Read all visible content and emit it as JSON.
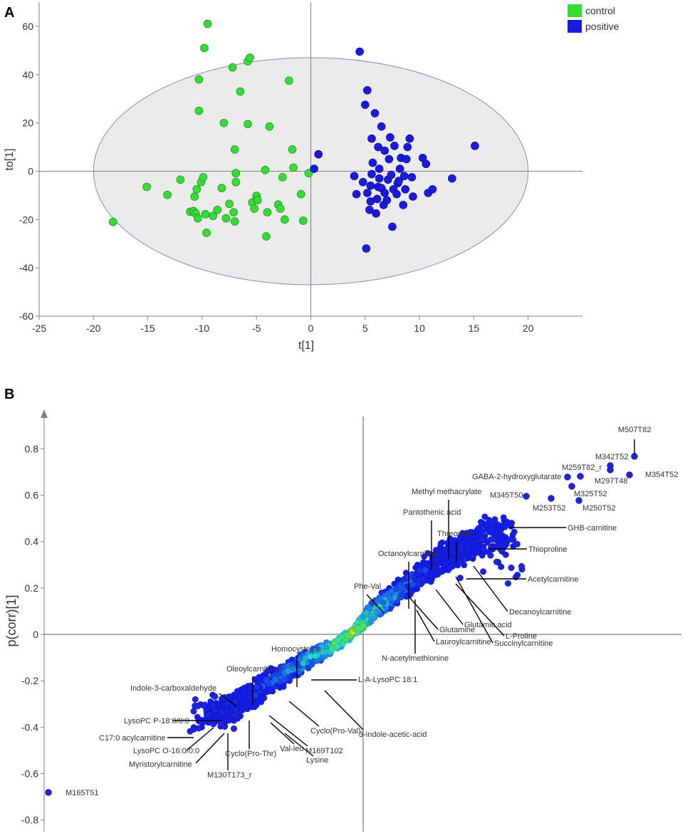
{
  "colors": {
    "control": "#33dd33",
    "positive": "#1a1ae0",
    "ellipse_fill": "#ebebeb",
    "axis": "#808080",
    "leader": "#000000"
  },
  "chart_data": [
    {
      "type": "scatter",
      "panel": "A",
      "xlabel": "t[1]",
      "ylabel": "to[1]",
      "xlim": [
        -25,
        25
      ],
      "ylim": [
        -60,
        70
      ],
      "xticks": [
        -25,
        -20,
        -15,
        -10,
        -5,
        0,
        5,
        10,
        15,
        20
      ],
      "yticks": [
        -60,
        -40,
        -20,
        0,
        20,
        40,
        60
      ],
      "legend": [
        "control",
        "positive"
      ],
      "legend_position": "top-right",
      "confidence_ellipse": {
        "cx": 0,
        "cy": 0,
        "rx": 20,
        "ry": 47
      },
      "series": [
        {
          "name": "control",
          "points": [
            [
              -18.2,
              -21
            ],
            [
              -15.1,
              -6.5
            ],
            [
              -13.2,
              -9.8
            ],
            [
              -12,
              -3.5
            ],
            [
              -11.1,
              -16.8
            ],
            [
              -10.8,
              -16.5
            ],
            [
              -10.7,
              -10.5
            ],
            [
              -10.6,
              -17.5
            ],
            [
              -10.5,
              -7.5
            ],
            [
              -10.4,
              -19.5
            ],
            [
              -10.3,
              25
            ],
            [
              -10.3,
              38
            ],
            [
              -10.1,
              -4.5
            ],
            [
              -9.9,
              -2.5
            ],
            [
              -9.8,
              51
            ],
            [
              -9.7,
              -17.8
            ],
            [
              -9.6,
              -25.5
            ],
            [
              -9.5,
              61
            ],
            [
              -9,
              -18.5
            ],
            [
              -8.6,
              -16
            ],
            [
              -8.2,
              -7
            ],
            [
              -8,
              20
            ],
            [
              -7.8,
              -19.5
            ],
            [
              -7.5,
              -13.5
            ],
            [
              -7.2,
              43
            ],
            [
              -7.1,
              -17
            ],
            [
              -7,
              -20.8
            ],
            [
              -7,
              9
            ],
            [
              -6.9,
              -4.5
            ],
            [
              -6.9,
              -0.8
            ],
            [
              -6.5,
              33
            ],
            [
              -5.8,
              45.5
            ],
            [
              -5.8,
              19.5
            ],
            [
              -5.6,
              47
            ],
            [
              -5.4,
              -13
            ],
            [
              -5.2,
              -15.5
            ],
            [
              -5,
              -10.2
            ],
            [
              -4.9,
              -12
            ],
            [
              -4.2,
              0.5
            ],
            [
              -4.1,
              -27
            ],
            [
              -4,
              -17
            ],
            [
              -3.8,
              18.5
            ],
            [
              -3,
              -13.8
            ],
            [
              -2.8,
              -15.5
            ],
            [
              -2.6,
              -2.5
            ],
            [
              -2.4,
              -20
            ],
            [
              -2,
              37.5
            ],
            [
              -1.7,
              9
            ],
            [
              -1.6,
              1.5
            ],
            [
              -0.9,
              -9.5
            ],
            [
              -0.7,
              -20.5
            ],
            [
              -0.2,
              -0.8
            ]
          ]
        },
        {
          "name": "positive",
          "points": [
            [
              0.3,
              1
            ],
            [
              0.7,
              7
            ],
            [
              4,
              -2
            ],
            [
              4.2,
              -9.5
            ],
            [
              4.5,
              49.5
            ],
            [
              4.8,
              -4.5
            ],
            [
              5,
              27.5
            ],
            [
              5.1,
              -32
            ],
            [
              5.2,
              -9
            ],
            [
              5.2,
              33.5
            ],
            [
              5.4,
              -16
            ],
            [
              5.5,
              -12.5
            ],
            [
              5.5,
              -6
            ],
            [
              5.6,
              -1.2
            ],
            [
              5.6,
              13.5
            ],
            [
              5.7,
              3.5
            ],
            [
              5.9,
              24
            ],
            [
              6,
              -17.5
            ],
            [
              6.1,
              -11.5
            ],
            [
              6.2,
              -6.5
            ],
            [
              6.2,
              10
            ],
            [
              6.3,
              -3
            ],
            [
              6.3,
              1
            ],
            [
              6.5,
              -7
            ],
            [
              6.5,
              18.5
            ],
            [
              6.7,
              -14
            ],
            [
              6.8,
              -9
            ],
            [
              6.8,
              8.5
            ],
            [
              7,
              -12
            ],
            [
              7.1,
              -3.5
            ],
            [
              7.2,
              5
            ],
            [
              7.3,
              14
            ],
            [
              7.4,
              -1.5
            ],
            [
              7.5,
              -23
            ],
            [
              7.6,
              -7.5
            ],
            [
              7.7,
              10.5
            ],
            [
              7.9,
              -9.5
            ],
            [
              8,
              -5
            ],
            [
              8.1,
              -4
            ],
            [
              8.2,
              1
            ],
            [
              8.3,
              5.5
            ],
            [
              8.5,
              -14
            ],
            [
              8.6,
              -2
            ],
            [
              8.7,
              -7.5
            ],
            [
              8.8,
              5
            ],
            [
              8.9,
              10
            ],
            [
              9.1,
              13.5
            ],
            [
              9.3,
              -2.5
            ],
            [
              9.4,
              -10.5
            ],
            [
              10.3,
              5.5
            ],
            [
              10.6,
              3
            ],
            [
              10.8,
              -9
            ],
            [
              11.2,
              -7.5
            ],
            [
              13,
              -3
            ],
            [
              15.1,
              10.5
            ]
          ]
        }
      ]
    },
    {
      "type": "scatter",
      "panel": "B",
      "xlabel": "",
      "ylabel": "p(corr)[1]",
      "ylim": [
        -0.85,
        0.97
      ],
      "yticks": [
        -0.8,
        -0.6,
        -0.4,
        -0.2,
        0,
        0.2,
        0.4,
        0.6,
        0.8
      ],
      "yticklabels": [
        "-0.8",
        "-0.6",
        "-0.4",
        "-0.2",
        "0",
        "0.2",
        "0.4",
        "0.6",
        "0.8"
      ],
      "labeled_points": [
        {
          "name": "M507T82",
          "x": 0.808,
          "y": 0.805
        },
        {
          "name": "M342T52",
          "x": 0.762,
          "y": 0.765
        },
        {
          "name": "M354T52",
          "x": 0.797,
          "y": 0.725
        },
        {
          "name": "M297T48",
          "x": 0.765,
          "y": 0.745
        },
        {
          "name": "M259T82_r",
          "x": 0.712,
          "y": 0.72
        },
        {
          "name": "GABA-2-hydroxyglutarate",
          "x": 0.688,
          "y": 0.72
        },
        {
          "name": "M325T52",
          "x": 0.725,
          "y": 0.685
        },
        {
          "name": "M345T50",
          "x": 0.598,
          "y": 0.63
        },
        {
          "name": "M253T52",
          "x": 0.642,
          "y": 0.62
        },
        {
          "name": "M250T52",
          "x": 0.708,
          "y": 0.61
        },
        {
          "name": "GHB-carnitine",
          "x": 0.618,
          "y": 0.48
        },
        {
          "name": "Thioproline",
          "x": 0.594,
          "y": 0.31
        },
        {
          "name": "Acetylcarnitine",
          "x": 0.594,
          "y": 0.28
        },
        {
          "name": "Methyl methacrylate",
          "x": 0.505,
          "y": 0.28
        },
        {
          "name": "Pantothenic acid",
          "x": 0.472,
          "y": 0.25
        },
        {
          "name": "Threonine",
          "x": 0.532,
          "y": 0.27
        },
        {
          "name": "Octanoylcarnitine",
          "x": 0.445,
          "y": 0.21
        },
        {
          "name": "Phe-Val",
          "x": 0.418,
          "y": 0.14
        },
        {
          "name": "Decanoylcarnitine",
          "x": 0.538,
          "y": 0.26
        },
        {
          "name": "Glutamic acid",
          "x": 0.49,
          "y": 0.17
        },
        {
          "name": "L-Proline",
          "x": 0.505,
          "y": 0.225
        },
        {
          "name": "Succinylcarnitine",
          "x": 0.52,
          "y": 0.255
        },
        {
          "name": "Glutamine",
          "x": 0.445,
          "y": 0.16
        },
        {
          "name": "Lauroylcarnitine",
          "x": 0.46,
          "y": 0.2
        },
        {
          "name": "N-acetylmethionine",
          "x": 0.368,
          "y": 0.15
        },
        {
          "name": "Homocysteine",
          "x": 0.218,
          "y": -0.22
        },
        {
          "name": "L-A-LysoPC 18:1",
          "x": 0.238,
          "y": -0.185
        },
        {
          "name": "Oleoylcarnitine",
          "x": 0.158,
          "y": -0.29
        },
        {
          "name": "Indole-3-carboxaldehyde",
          "x": 0.095,
          "y": -0.34
        },
        {
          "name": "LysoPC P-18:0/0:0",
          "x": -0.005,
          "y": -0.375
        },
        {
          "name": "C17:0 acylcarnitine",
          "x": -0.005,
          "y": -0.44
        },
        {
          "name": "LysoPC O-16:0/0:0",
          "x": 0.045,
          "y": -0.38
        },
        {
          "name": "Myristorylcarnitine",
          "x": 0.075,
          "y": -0.4
        },
        {
          "name": "M130T173_r",
          "x": 0.085,
          "y": -0.41
        },
        {
          "name": "Cyclo(Pro-Thr)",
          "x": 0.148,
          "y": -0.39
        },
        {
          "name": "Val-leu",
          "x": 0.168,
          "y": -0.36
        },
        {
          "name": "Lysine",
          "x": 0.178,
          "y": -0.375
        },
        {
          "name": "M169T102",
          "x": 0.188,
          "y": -0.385
        },
        {
          "name": "Cyclo(Pro-Val)",
          "x": 0.218,
          "y": -0.3
        },
        {
          "name": "3-indole-acetic-acid",
          "x": 0.242,
          "y": -0.21
        },
        {
          "name": "M165T51",
          "x": -0.07,
          "y": -0.69
        }
      ]
    }
  ]
}
